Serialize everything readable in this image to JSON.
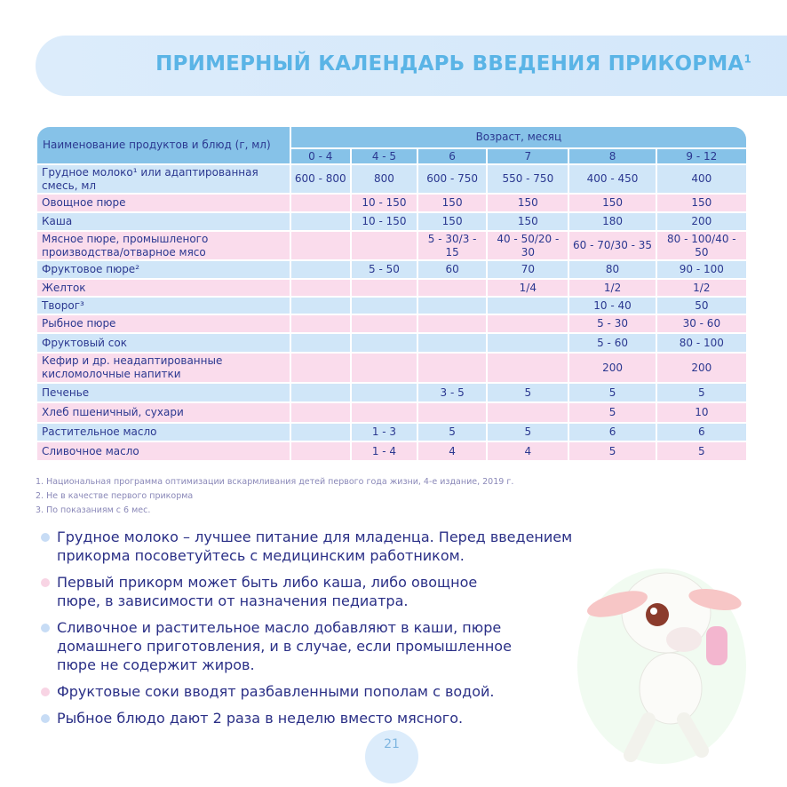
{
  "title": "ПРИМЕРНЫЙ КАЛЕНДАРЬ ВВЕДЕНИЯ ПРИКОРМА",
  "title_sup": "1",
  "table": {
    "name_header": "Наименование продуктов и блюд (г, мл)",
    "age_header": "Возраст, месяц",
    "ages": [
      "0 - 4",
      "4 - 5",
      "6",
      "7",
      "8",
      "9 - 12"
    ],
    "rows": [
      {
        "name": "Грудное молоко¹ или адаптированная смесь, мл",
        "values": [
          "600 - 800",
          "800",
          "600 - 750",
          "550 - 750",
          "400 - 450",
          "400"
        ]
      },
      {
        "name": "Овощное пюре",
        "values": [
          "",
          "10 - 150",
          "150",
          "150",
          "150",
          "150"
        ]
      },
      {
        "name": "Каша",
        "values": [
          "",
          "10 - 150",
          "150",
          "150",
          "180",
          "200"
        ]
      },
      {
        "name": "Мясное пюре, промышленого производства/отварное мясо",
        "values": [
          "",
          "",
          "5 - 30/3 - 15",
          "40 - 50/20 - 30",
          "60 - 70/30 - 35",
          "80 - 100/40 - 50"
        ]
      },
      {
        "name": "Фруктовое пюре²",
        "values": [
          "",
          "5 - 50",
          "60",
          "70",
          "80",
          "90 - 100"
        ]
      },
      {
        "name": "Желток",
        "values": [
          "",
          "",
          "",
          "1/4",
          "1/2",
          "1/2"
        ]
      },
      {
        "name": "Творог³",
        "values": [
          "",
          "",
          "",
          "",
          "10 - 40",
          "50"
        ]
      },
      {
        "name": "Рыбное пюре",
        "values": [
          "",
          "",
          "",
          "",
          "5 - 30",
          "30 - 60"
        ]
      },
      {
        "name": "Фруктовый сок",
        "values": [
          "",
          "",
          "",
          "",
          "5 - 60",
          "80 - 100"
        ]
      },
      {
        "name": "Кефир и др. неадаптированные кисломолочные напитки",
        "values": [
          "",
          "",
          "",
          "",
          "200",
          "200"
        ]
      },
      {
        "name": "Печенье",
        "values": [
          "",
          "",
          "3 - 5",
          "5",
          "5",
          "5"
        ]
      },
      {
        "name": "Хлеб пшеничный, сухари",
        "values": [
          "",
          "",
          "",
          "",
          "5",
          "10"
        ]
      },
      {
        "name": "Растительное масло",
        "values": [
          "",
          "1 - 3",
          "5",
          "5",
          "6",
          "6"
        ]
      },
      {
        "name": "Сливочное масло",
        "values": [
          "",
          "1 - 4",
          "4",
          "4",
          "5",
          "5"
        ]
      }
    ]
  },
  "footnotes": [
    "1. Национальная программа оптимизации вскармливания детей первого года жизни, 4-е издание, 2019 г.",
    "2. Не в качестве первого прикорма",
    "3. По показаниям с 6 мес."
  ],
  "bullets": [
    "Грудное молоко – лучшее питание для младенца. Перед введением прикорма посоветуйтесь с медицинским работником.",
    "Первый прикорм может быть либо каша, либо овощное пюре, в зависимости от назначения педиатра.",
    "Сливочное и растительное масло добавляют в каши, пюре домашнего приготовления, и в случае, если промышленное пюре не содержит жиров.",
    "Фруктовые соки вводят разбавленными пополам с водой.",
    "Рыбное блюдо дают 2 раза в неделю вместо мясного."
  ],
  "bullet_colors": [
    "#c7dcf5",
    "#f8d4e4"
  ],
  "page_number": "21"
}
